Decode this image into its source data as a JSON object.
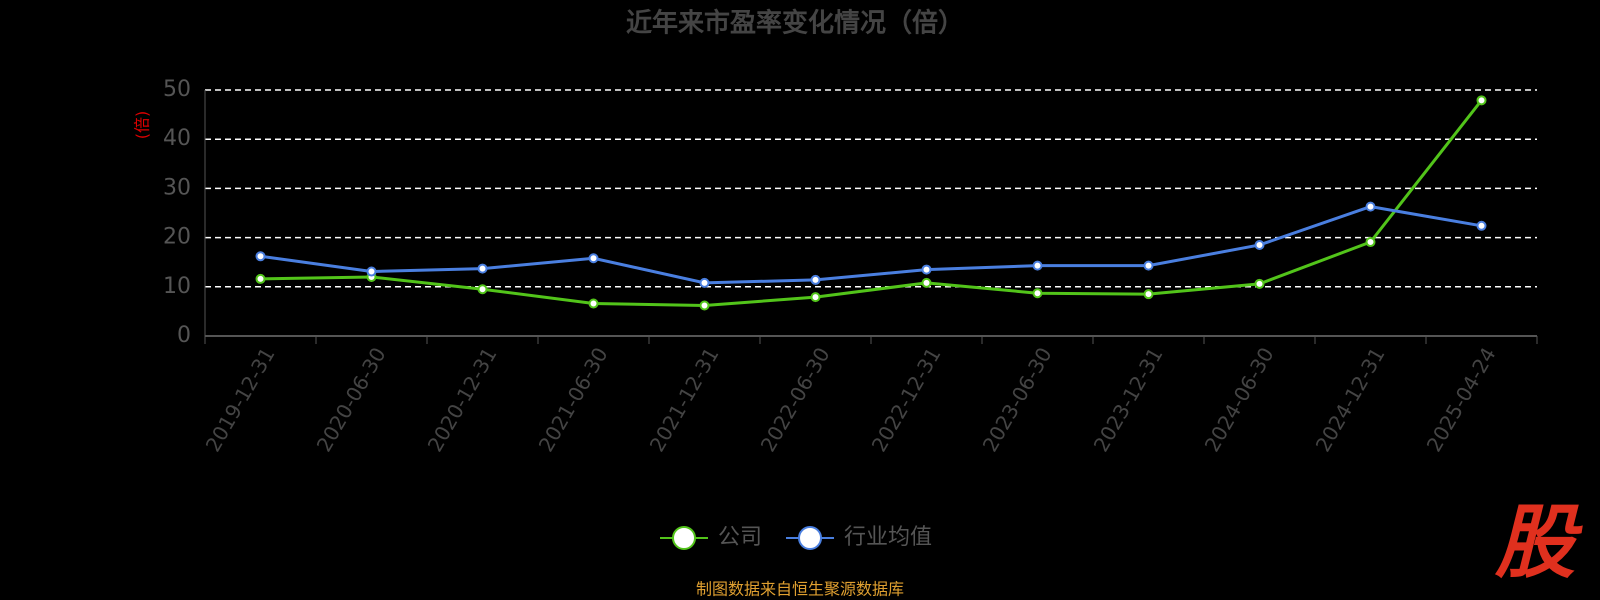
{
  "chart_data": {
    "type": "line",
    "title": "近年来市盈率变化情况（倍）",
    "y_axis_label": "(倍)",
    "categories": [
      "2019-12-31",
      "2020-06-30",
      "2020-12-31",
      "2021-06-30",
      "2021-12-31",
      "2022-06-30",
      "2022-12-31",
      "2023-06-30",
      "2023-12-31",
      "2024-06-30",
      "2024-12-31",
      "2025-04-24"
    ],
    "series": [
      {
        "name": "公司",
        "color": "#52c41a",
        "values": [
          11.6,
          12.0,
          9.5,
          6.6,
          6.2,
          7.9,
          10.8,
          8.7,
          8.5,
          10.6,
          19.1,
          47.9
        ]
      },
      {
        "name": "行业均值",
        "color": "#4a7fe0",
        "values": [
          16.2,
          13.1,
          13.7,
          15.8,
          10.8,
          11.4,
          13.5,
          14.3,
          14.3,
          18.5,
          26.3,
          22.4
        ]
      }
    ],
    "ylim": [
      0,
      50
    ],
    "yticks": [
      0,
      10,
      20,
      30,
      40,
      50
    ],
    "grid": true,
    "source": "制图数据来自恒生聚源数据库",
    "watermark": "股"
  }
}
